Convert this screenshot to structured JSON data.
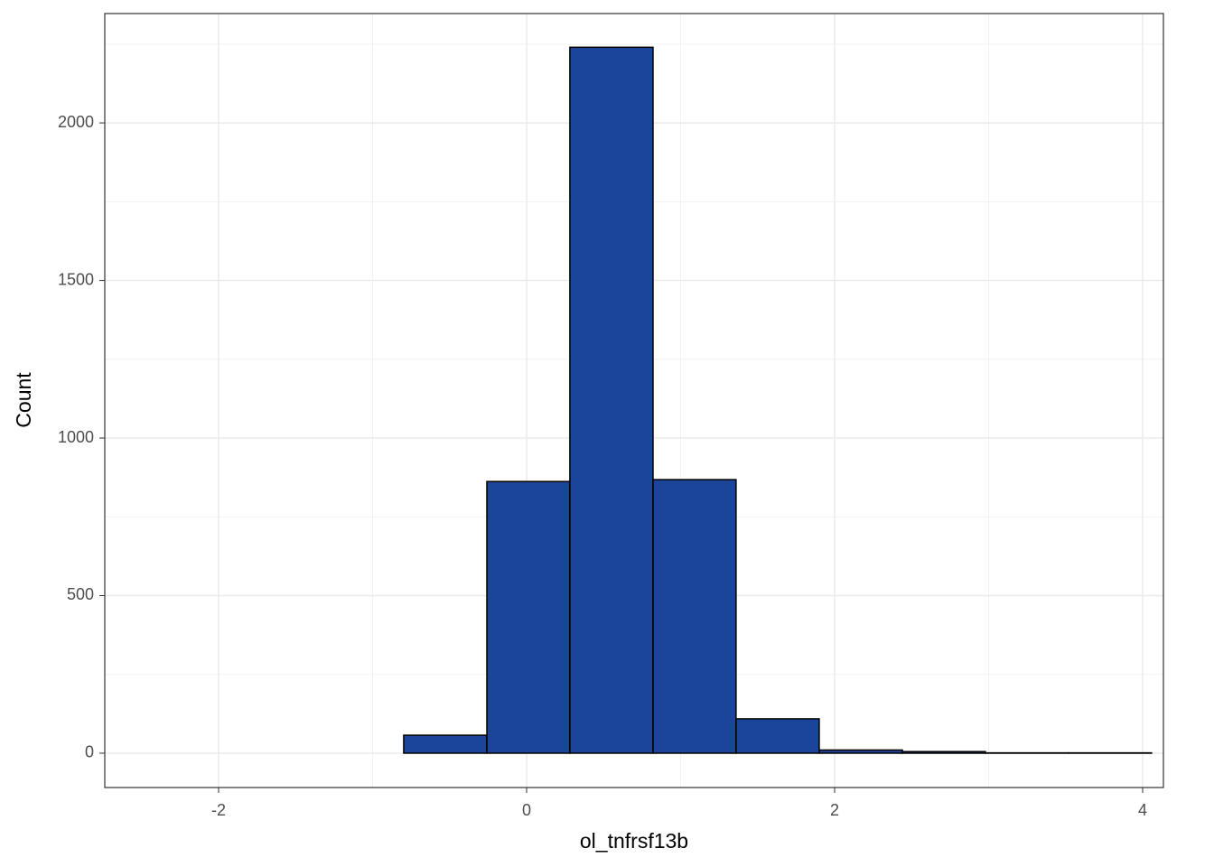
{
  "chart_data": {
    "type": "histogram",
    "x_label": "ol_tnfrsf13b",
    "y_label": "Count",
    "bins": [
      -2.416,
      -1.877,
      -1.337,
      -0.798,
      -0.258,
      0.281,
      0.821,
      1.36,
      1.9,
      2.44,
      2.979,
      3.519,
      4.058
    ],
    "values": [
      0,
      0,
      0,
      57,
      862,
      2240,
      868,
      109,
      10,
      5,
      1,
      1
    ],
    "color": "#1a4599",
    "edge_color": "#000000",
    "xlim": [
      -2.739,
      4.135
    ],
    "ylim": [
      -109,
      2347
    ],
    "xticks": [
      -2,
      0,
      2,
      4
    ],
    "yticks": [
      0,
      500,
      1000,
      1500,
      2000
    ],
    "grid": true
  }
}
